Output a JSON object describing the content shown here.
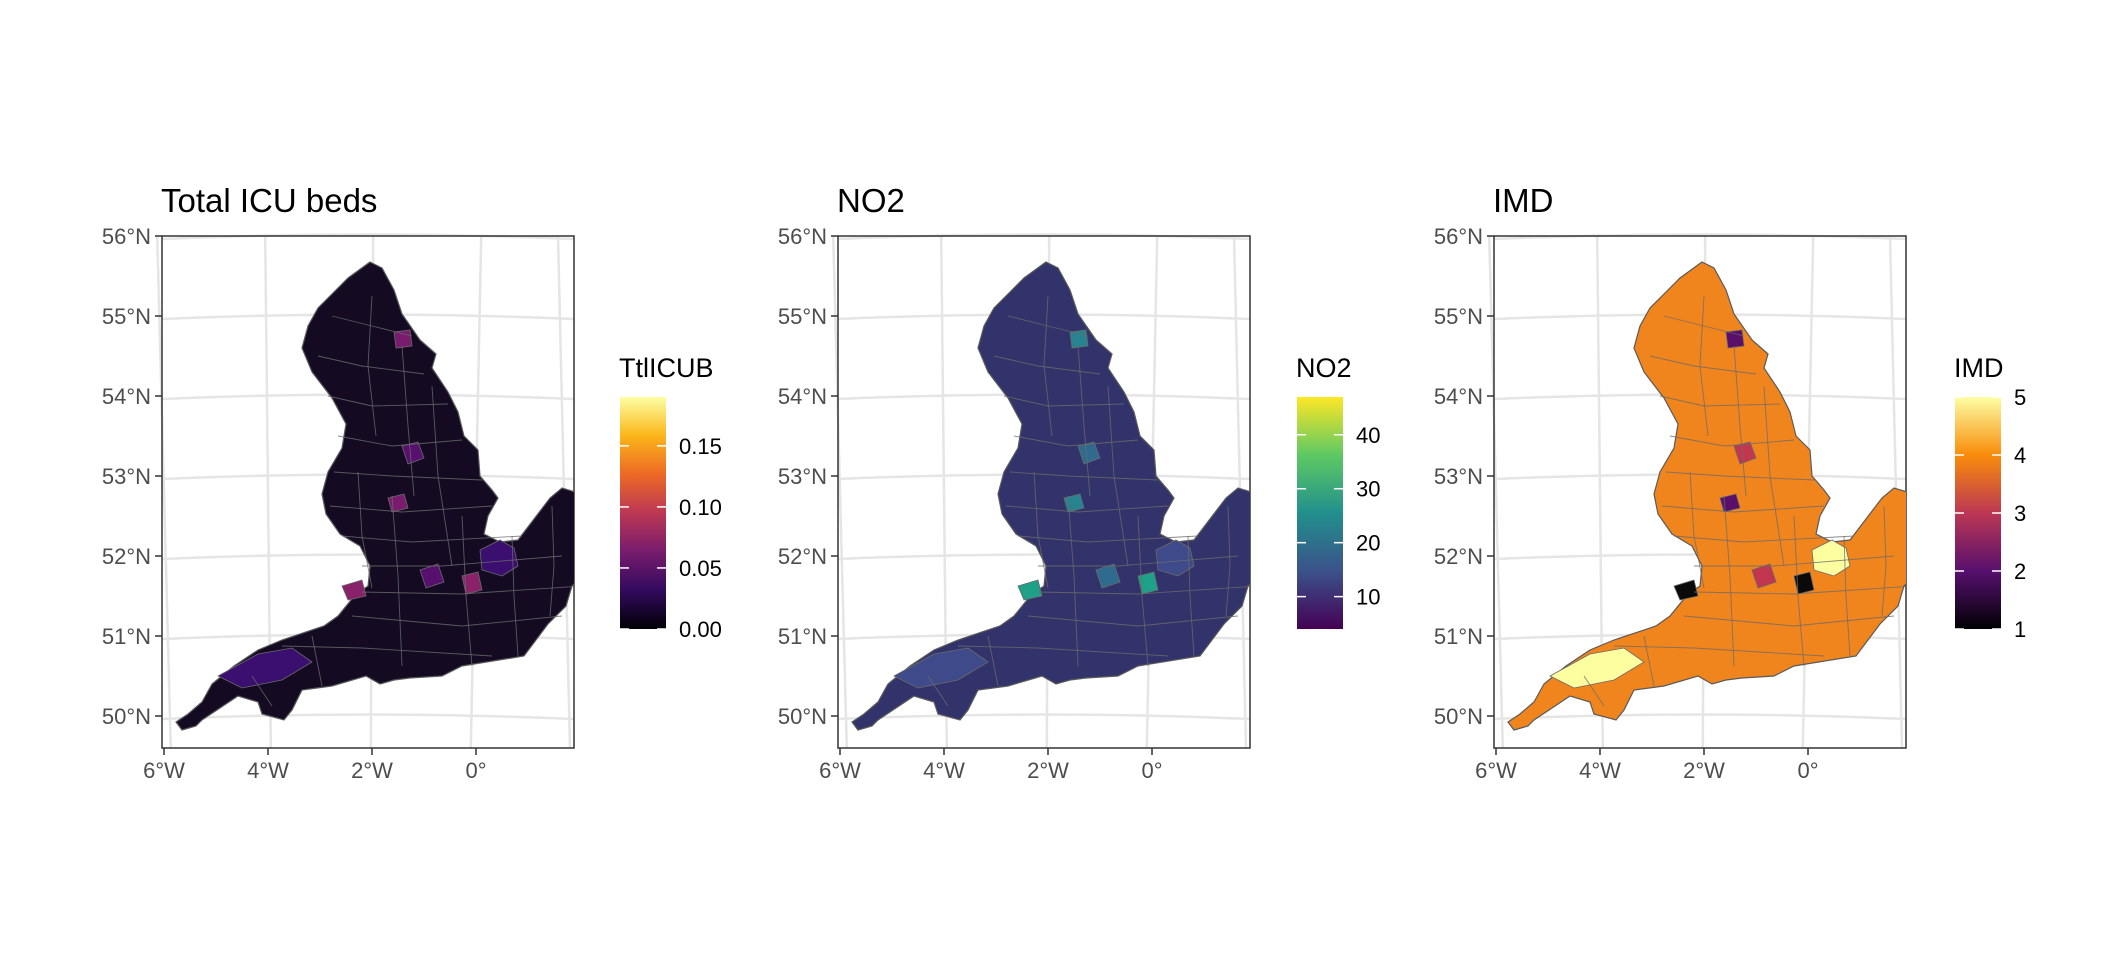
{
  "lat_ticks": [
    "56°N",
    "55°N",
    "54°N",
    "53°N",
    "52°N",
    "51°N",
    "50°N"
  ],
  "lon_ticks": [
    "6°W",
    "4°W",
    "2°W",
    "0°"
  ],
  "panels": [
    {
      "id": "icu",
      "title": "Total ICU beds",
      "legend_title": "TtlICUB",
      "legend_ticks": [
        "0.00",
        "0.05",
        "0.10",
        "0.15"
      ],
      "legend_tick_values": [
        0.0,
        0.05,
        0.1,
        0.15
      ],
      "legend_range": [
        0.0,
        0.19
      ],
      "palette": "inferno",
      "colors": [
        "#000004",
        "#320a5e",
        "#781c6d",
        "#bc3754",
        "#ed6925",
        "#fbb61a",
        "#fcffa4"
      ],
      "map_base_color": "#140b23",
      "highlight_colors": [
        "#3b0f6f",
        "#57106e",
        "#7a1c6d",
        "#8a226a"
      ]
    },
    {
      "id": "no2",
      "title": "NO2",
      "legend_title": "NO2",
      "legend_ticks": [
        "10",
        "20",
        "30",
        "40"
      ],
      "legend_tick_values": [
        10,
        20,
        30,
        40
      ],
      "legend_range": [
        4,
        47
      ],
      "palette": "viridis",
      "colors": [
        "#440154",
        "#3b528b",
        "#21908c",
        "#5dc963",
        "#fde725"
      ],
      "map_base_color": "#33336b",
      "highlight_colors": [
        "#3e4a89",
        "#2f6b8e",
        "#26838f",
        "#1fa088"
      ]
    },
    {
      "id": "imd",
      "title": "IMD",
      "legend_title": "IMD",
      "legend_ticks": [
        "1",
        "2",
        "3",
        "4",
        "5"
      ],
      "legend_tick_values": [
        1,
        2,
        3,
        4,
        5
      ],
      "legend_range": [
        1,
        5
      ],
      "palette": "inferno",
      "colors": [
        "#000004",
        "#57106e",
        "#bc3754",
        "#f98c0a",
        "#fcffa4"
      ],
      "map_base_color": "#f0841d",
      "highlight_colors": [
        "#fdfea0",
        "#c2364f",
        "#5a0f6b",
        "#0a0a0a"
      ]
    }
  ]
}
